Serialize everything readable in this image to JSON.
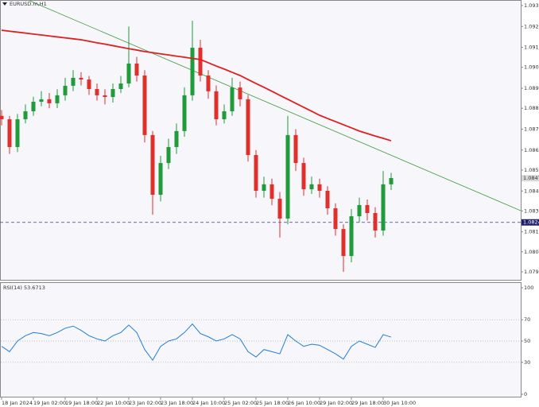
{
  "chart_data": [
    {
      "type": "candlestick",
      "title": "EURUSD.m,H1",
      "categories": [
        "18 Jan 2024",
        null,
        null,
        null,
        "19 Jan 02:00",
        null,
        null,
        null,
        "19 Jan 18:00",
        null,
        null,
        null,
        "22 Jan 10:00",
        null,
        null,
        null,
        "23 Jan 02:00",
        null,
        null,
        null,
        "23 Jan 18:00",
        null,
        null,
        null,
        "24 Jan 10:00",
        null,
        null,
        null,
        "25 Jan 02:00",
        null,
        null,
        null,
        "25 Jan 18:00",
        null,
        null,
        null,
        "26 Jan 10:00",
        null,
        null,
        null,
        "29 Jan 02:00",
        null,
        null,
        null,
        "29 Jan 18:00",
        null,
        null,
        null,
        "30 Jan 10:00",
        null
      ],
      "ohlc": [
        [
          1.088,
          1.0883,
          1.0875,
          1.08782
        ],
        [
          1.08782,
          1.088,
          1.086,
          1.08636
        ],
        [
          1.08636,
          1.0881,
          1.0861,
          1.08782
        ],
        [
          1.08782,
          1.0886,
          1.0876,
          1.08824
        ],
        [
          1.08824,
          1.089,
          1.088,
          1.08874
        ],
        [
          1.08874,
          1.0893,
          1.0885,
          1.08887
        ],
        [
          1.08887,
          1.0892,
          1.0884,
          1.08866
        ],
        [
          1.08866,
          1.0894,
          1.0884,
          1.08908
        ],
        [
          1.08908,
          1.09,
          1.0888,
          1.08958
        ],
        [
          1.08958,
          1.0904,
          1.0893,
          1.09
        ],
        [
          1.09,
          1.0903,
          1.0896,
          1.08991
        ],
        [
          1.08991,
          1.0901,
          1.0891,
          1.08941
        ],
        [
          1.08941,
          1.0897,
          1.0888,
          1.08908
        ],
        [
          1.08908,
          1.0894,
          1.0886,
          1.08899
        ],
        [
          1.08899,
          1.0897,
          1.0887,
          1.08941
        ],
        [
          1.08941,
          1.0901,
          1.0892,
          1.0897
        ],
        [
          1.0897,
          1.0927,
          1.0895,
          1.09075
        ],
        [
          1.09075,
          1.0911,
          1.0898,
          1.09012
        ],
        [
          1.09012,
          1.0904,
          1.0866,
          1.08699
        ],
        [
          1.08699,
          1.0872,
          1.0828,
          1.08385
        ],
        [
          1.08385,
          1.0859,
          1.0835,
          1.08552
        ],
        [
          1.08552,
          1.0868,
          1.0852,
          1.08636
        ],
        [
          1.08636,
          1.0876,
          1.086,
          1.0872
        ],
        [
          1.0872,
          1.0895,
          1.0869,
          1.08908
        ],
        [
          1.08908,
          1.093,
          1.0888,
          1.09158
        ],
        [
          1.09158,
          1.092,
          1.0898,
          1.09012
        ],
        [
          1.09012,
          1.0904,
          1.0889,
          1.08929
        ],
        [
          1.08929,
          1.0896,
          1.0875,
          1.08782
        ],
        [
          1.08782,
          1.0886,
          1.0876,
          1.08824
        ],
        [
          1.08824,
          1.09,
          1.088,
          1.08949
        ],
        [
          1.08949,
          1.0898,
          1.0885,
          1.08887
        ],
        [
          1.08887,
          1.0891,
          1.0856,
          1.08594
        ],
        [
          1.08594,
          1.0862,
          1.0837,
          1.08406
        ],
        [
          1.08406,
          1.0848,
          1.0837,
          1.0844
        ],
        [
          1.0844,
          1.0847,
          1.0833,
          1.08364
        ],
        [
          1.08364,
          1.084,
          1.0816,
          1.0826
        ],
        [
          1.0826,
          1.088,
          1.0823,
          1.08699
        ],
        [
          1.08699,
          1.0873,
          1.0851,
          1.08552
        ],
        [
          1.08552,
          1.0858,
          1.0838,
          1.08414
        ],
        [
          1.08414,
          1.0848,
          1.0839,
          1.0844
        ],
        [
          1.0844,
          1.0847,
          1.0837,
          1.08406
        ],
        [
          1.08406,
          1.0843,
          1.0828,
          1.08314
        ],
        [
          1.08314,
          1.0834,
          1.0817,
          1.08205
        ],
        [
          1.08205,
          1.0823,
          1.0798,
          1.08063
        ],
        [
          1.08063,
          1.0831,
          1.0803,
          1.08272
        ],
        [
          1.08272,
          1.0837,
          1.0824,
          1.08331
        ],
        [
          1.08331,
          1.0836,
          1.0825,
          1.08289
        ],
        [
          1.08289,
          1.0832,
          1.0816,
          1.08197
        ],
        [
          1.08197,
          1.0851,
          1.0817,
          1.0844
        ],
        [
          1.0844,
          1.085,
          1.0841,
          1.08473
        ]
      ],
      "up_color": "#1f9b3a",
      "down_color": "#e0302c",
      "ma": {
        "color": "#e02020",
        "values": [
          1.0925,
          1.09245,
          1.0924,
          1.09235,
          1.0923,
          1.09225,
          1.0922,
          1.09215,
          1.0921,
          1.09205,
          1.092,
          1.09192,
          1.09184,
          1.09177,
          1.09169,
          1.09161,
          1.09153,
          1.09146,
          1.09138,
          1.09132,
          1.09126,
          1.0912,
          1.09114,
          1.09108,
          1.09102,
          1.09096,
          1.09079,
          1.09062,
          1.09046,
          1.09029,
          1.09012,
          1.08991,
          1.0897,
          1.0895,
          1.08929,
          1.08908,
          1.08887,
          1.08866,
          1.08845,
          1.08824,
          1.08803,
          1.08786,
          1.0877,
          1.08753,
          1.08737,
          1.0872,
          1.08707,
          1.08694,
          1.08682,
          1.08669
        ]
      },
      "ylim": [
        1.07938,
        1.09409
      ],
      "yticks": [
        {
          "value": 1.0938,
          "label": "1.09380"
        },
        {
          "value": 1.0927,
          "label": "1.09270"
        },
        {
          "value": 1.0916,
          "label": "1.09160"
        },
        1.09055,
        1.08945,
        {
          "value": 1.0884,
          "label": "1.08840"
        },
        {
          "value": 1.0873,
          "label": "1.08730"
        },
        {
          "value": 1.0862,
          "label": "1.08620"
        },
        1.08515,
        1.08405,
        {
          "value": 1.083,
          "label": "1.08300"
        },
        {
          "value": 1.0819,
          "label": "1.08190"
        },
        1.08085,
        {
          "value": 1.0798,
          "label": "1.07980"
        }
      ],
      "current_price": 1.08472,
      "level_line": {
        "value": 1.0824,
        "label": "1.08240"
      }
    },
    {
      "type": "line",
      "title": "RSI(14) 53.6713",
      "color": "#1e7fd8",
      "values": [
        45,
        40,
        50,
        55,
        58,
        57,
        55,
        58,
        62,
        64,
        60,
        55,
        52,
        50,
        55,
        58,
        65,
        58,
        42,
        32,
        45,
        50,
        52,
        58,
        66,
        57,
        54,
        50,
        52,
        56,
        52,
        40,
        35,
        42,
        40,
        38,
        56,
        50,
        45,
        47,
        46,
        42,
        38,
        33,
        45,
        50,
        47,
        44,
        56,
        53.6713
      ],
      "ylim": [
        0,
        100
      ],
      "yticks": [
        0,
        30,
        50,
        70,
        100
      ],
      "levels": [
        30,
        50,
        70
      ]
    }
  ]
}
